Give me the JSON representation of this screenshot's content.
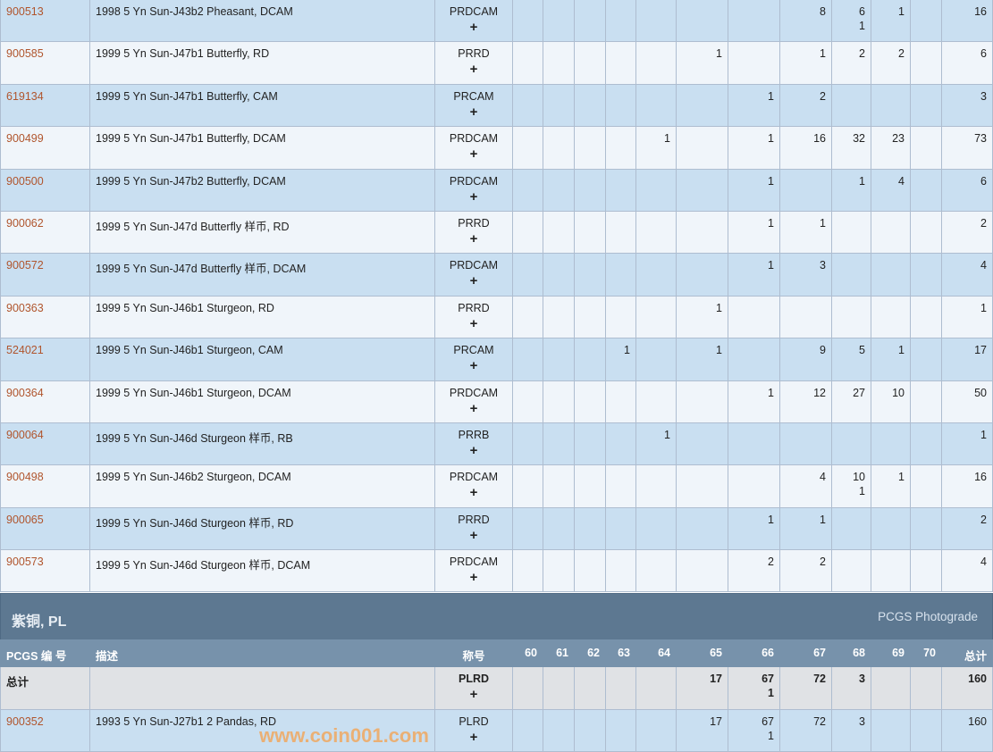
{
  "grades": [
    "60",
    "61",
    "62",
    "63",
    "64",
    "65",
    "66",
    "67",
    "68",
    "69",
    "70"
  ],
  "rows": [
    {
      "pcgs": "900513",
      "desc": "1998 5 Yn Sun-J43b2 Pheasant, DCAM",
      "desig": "PRDCAM",
      "plus_label": "+",
      "g": [
        "",
        "",
        "",
        "",
        "",
        "",
        "",
        "8",
        "6",
        "1",
        ""
      ],
      "p": [
        "",
        "",
        "",
        "",
        "",
        "",
        "",
        "",
        "1",
        "",
        ""
      ],
      "total": "16"
    },
    {
      "pcgs": "900585",
      "desc": "1999 5 Yn Sun-J47b1 Butterfly, RD",
      "desig": "PRRD",
      "plus_label": "+",
      "g": [
        "",
        "",
        "",
        "",
        "",
        "1",
        "",
        "1",
        "2",
        "2",
        ""
      ],
      "p": [
        "",
        "",
        "",
        "",
        "",
        "",
        "",
        "",
        "",
        "",
        ""
      ],
      "total": "6"
    },
    {
      "pcgs": "619134",
      "desc": "1999 5 Yn Sun-J47b1 Butterfly, CAM",
      "desig": "PRCAM",
      "plus_label": "+",
      "g": [
        "",
        "",
        "",
        "",
        "",
        "",
        "1",
        "2",
        "",
        "",
        ""
      ],
      "p": [
        "",
        "",
        "",
        "",
        "",
        "",
        "",
        "",
        "",
        "",
        ""
      ],
      "total": "3"
    },
    {
      "pcgs": "900499",
      "desc": "1999 5 Yn Sun-J47b1 Butterfly, DCAM",
      "desig": "PRDCAM",
      "plus_label": "+",
      "g": [
        "",
        "",
        "",
        "",
        "1",
        "",
        "1",
        "16",
        "32",
        "23",
        ""
      ],
      "p": [
        "",
        "",
        "",
        "",
        "",
        "",
        "",
        "",
        "",
        "",
        ""
      ],
      "total": "73"
    },
    {
      "pcgs": "900500",
      "desc": "1999 5 Yn Sun-J47b2 Butterfly, DCAM",
      "desig": "PRDCAM",
      "plus_label": "+",
      "g": [
        "",
        "",
        "",
        "",
        "",
        "",
        "1",
        "",
        "1",
        "4",
        ""
      ],
      "p": [
        "",
        "",
        "",
        "",
        "",
        "",
        "",
        "",
        "",
        "",
        ""
      ],
      "total": "6"
    },
    {
      "pcgs": "900062",
      "desc": "1999 5 Yn Sun-J47d Butterfly 样币, RD",
      "desig": "PRRD",
      "plus_label": "+",
      "g": [
        "",
        "",
        "",
        "",
        "",
        "",
        "1",
        "1",
        "",
        "",
        ""
      ],
      "p": [
        "",
        "",
        "",
        "",
        "",
        "",
        "",
        "",
        "",
        "",
        ""
      ],
      "total": "2"
    },
    {
      "pcgs": "900572",
      "desc": "1999 5 Yn Sun-J47d Butterfly 样币, DCAM",
      "desig": "PRDCAM",
      "plus_label": "+",
      "g": [
        "",
        "",
        "",
        "",
        "",
        "",
        "1",
        "3",
        "",
        "",
        ""
      ],
      "p": [
        "",
        "",
        "",
        "",
        "",
        "",
        "",
        "",
        "",
        "",
        ""
      ],
      "total": "4"
    },
    {
      "pcgs": "900363",
      "desc": "1999 5 Yn Sun-J46b1 Sturgeon, RD",
      "desig": "PRRD",
      "plus_label": "+",
      "g": [
        "",
        "",
        "",
        "",
        "",
        "1",
        "",
        "",
        "",
        "",
        ""
      ],
      "p": [
        "",
        "",
        "",
        "",
        "",
        "",
        "",
        "",
        "",
        "",
        ""
      ],
      "total": "1"
    },
    {
      "pcgs": "524021",
      "desc": "1999 5 Yn Sun-J46b1 Sturgeon, CAM",
      "desig": "PRCAM",
      "plus_label": "+",
      "g": [
        "",
        "",
        "",
        "1",
        "",
        "1",
        "",
        "9",
        "5",
        "1",
        ""
      ],
      "p": [
        "",
        "",
        "",
        "",
        "",
        "",
        "",
        "",
        "",
        "",
        ""
      ],
      "total": "17"
    },
    {
      "pcgs": "900364",
      "desc": "1999 5 Yn Sun-J46b1 Sturgeon, DCAM",
      "desig": "PRDCAM",
      "plus_label": "+",
      "g": [
        "",
        "",
        "",
        "",
        "",
        "",
        "1",
        "12",
        "27",
        "10",
        ""
      ],
      "p": [
        "",
        "",
        "",
        "",
        "",
        "",
        "",
        "",
        "",
        "",
        ""
      ],
      "total": "50"
    },
    {
      "pcgs": "900064",
      "desc": "1999 5 Yn Sun-J46d Sturgeon 样币, RB",
      "desig": "PRRB",
      "plus_label": "+",
      "g": [
        "",
        "",
        "",
        "",
        "1",
        "",
        "",
        "",
        "",
        "",
        ""
      ],
      "p": [
        "",
        "",
        "",
        "",
        "",
        "",
        "",
        "",
        "",
        "",
        ""
      ],
      "total": "1"
    },
    {
      "pcgs": "900498",
      "desc": "1999 5 Yn Sun-J46b2 Sturgeon, DCAM",
      "desig": "PRDCAM",
      "plus_label": "+",
      "g": [
        "",
        "",
        "",
        "",
        "",
        "",
        "",
        "4",
        "10",
        "1",
        ""
      ],
      "p": [
        "",
        "",
        "",
        "",
        "",
        "",
        "",
        "",
        "1",
        "",
        ""
      ],
      "total": "16"
    },
    {
      "pcgs": "900065",
      "desc": "1999 5 Yn Sun-J46d Sturgeon 样币, RD",
      "desig": "PRRD",
      "plus_label": "+",
      "g": [
        "",
        "",
        "",
        "",
        "",
        "",
        "1",
        "1",
        "",
        "",
        ""
      ],
      "p": [
        "",
        "",
        "",
        "",
        "",
        "",
        "",
        "",
        "",
        "",
        ""
      ],
      "total": "2"
    },
    {
      "pcgs": "900573",
      "desc": "1999 5 Yn Sun-J46d Sturgeon 样币, DCAM",
      "desig": "PRDCAM",
      "plus_label": "+",
      "g": [
        "",
        "",
        "",
        "",
        "",
        "",
        "2",
        "2",
        "",
        "",
        ""
      ],
      "p": [
        "",
        "",
        "",
        "",
        "",
        "",
        "",
        "",
        "",
        "",
        ""
      ],
      "total": "4"
    }
  ],
  "section": {
    "title": "紫铜, PL",
    "link": "PCGS Photograde"
  },
  "header": {
    "pcgs": "PCGS 编 号",
    "desc": "描述",
    "desig": "称号",
    "total": "总计"
  },
  "totals": {
    "label": "总计",
    "desig": "PLRD",
    "plus_label": "+",
    "g": [
      "",
      "",
      "",
      "",
      "",
      "17",
      "67",
      "72",
      "3",
      "",
      ""
    ],
    "p": [
      "",
      "",
      "",
      "",
      "",
      "",
      "1",
      "",
      "",
      "",
      ""
    ],
    "total": "160"
  },
  "rows2": [
    {
      "pcgs": "900352",
      "desc": "1993 5 Yn Sun-J27b1 2 Pandas, RD",
      "desig": "PLRD",
      "plus_label": "+",
      "g": [
        "",
        "",
        "",
        "",
        "",
        "17",
        "67",
        "72",
        "3",
        "",
        ""
      ],
      "p": [
        "",
        "",
        "",
        "",
        "",
        "",
        "1",
        "",
        "",
        "",
        ""
      ],
      "total": "160"
    }
  ],
  "watermark": "www.coin001.com",
  "colors": {
    "row_odd": "#c9dff1",
    "row_even": "#f0f5fa",
    "section": "#5d7891",
    "header": "#7792ab",
    "link": "#b0552d"
  }
}
